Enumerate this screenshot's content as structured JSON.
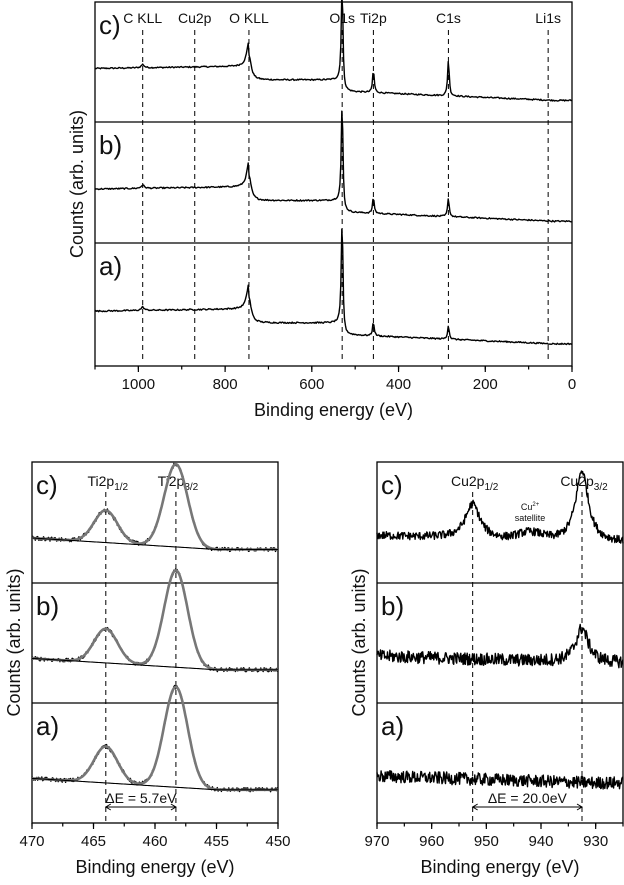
{
  "chart_data": [
    {
      "type": "line",
      "id": "survey",
      "xlabel": "Binding energy (eV)",
      "ylabel": "Counts (arb. units)",
      "xlim": [
        1100,
        0
      ],
      "xreversed": true,
      "xticks": [
        1000,
        800,
        600,
        400,
        200,
        0
      ],
      "panels": [
        "c)",
        "b)",
        "a)"
      ],
      "peak_lines": [
        {
          "label": "C KLL",
          "x": 990
        },
        {
          "label": "Cu2p",
          "x": 870
        },
        {
          "label": "O KLL",
          "x": 745
        },
        {
          "label": "O1s",
          "x": 530
        },
        {
          "label": "Ti2p",
          "x": 458
        },
        {
          "label": "C1s",
          "x": 285
        },
        {
          "label": "Li1s",
          "x": 55
        }
      ],
      "series": [
        {
          "panel": "c)",
          "peaks": [
            {
              "x": 530,
              "height": 0.9
            },
            {
              "x": 458,
              "height": 0.2
            },
            {
              "x": 285,
              "height": 0.32
            },
            {
              "x": 745,
              "height": 0.22
            }
          ]
        },
        {
          "panel": "b)",
          "peaks": [
            {
              "x": 530,
              "height": 0.92
            },
            {
              "x": 458,
              "height": 0.14
            },
            {
              "x": 285,
              "height": 0.16
            },
            {
              "x": 745,
              "height": 0.22
            }
          ]
        },
        {
          "panel": "a)",
          "peaks": [
            {
              "x": 530,
              "height": 0.95
            },
            {
              "x": 458,
              "height": 0.12
            },
            {
              "x": 285,
              "height": 0.12
            },
            {
              "x": 745,
              "height": 0.22
            }
          ]
        }
      ]
    },
    {
      "type": "line",
      "id": "ti2p",
      "xlabel": "Binding energy (eV)",
      "ylabel": "Counts (arb. units)",
      "xlim": [
        470,
        450
      ],
      "xreversed": true,
      "xticks": [
        470,
        465,
        460,
        455,
        450
      ],
      "panels": [
        "c)",
        "b)",
        "a)"
      ],
      "peak_lines": [
        {
          "label": "Ti2p",
          "sub": "1/2",
          "x": 464.0
        },
        {
          "label": "Ti2p",
          "sub": "3/2",
          "x": 458.3
        }
      ],
      "annotation": "ΔE = 5.7eV",
      "series": [
        {
          "panel": "c)",
          "peaks": [
            {
              "x": 464.0,
              "height": 0.28
            },
            {
              "x": 458.3,
              "height": 0.72
            }
          ]
        },
        {
          "panel": "b)",
          "peaks": [
            {
              "x": 464.0,
              "height": 0.3
            },
            {
              "x": 458.3,
              "height": 0.85
            }
          ]
        },
        {
          "panel": "a)",
          "peaks": [
            {
              "x": 464.0,
              "height": 0.32
            },
            {
              "x": 458.3,
              "height": 0.88
            }
          ]
        }
      ]
    },
    {
      "type": "line",
      "id": "cu2p",
      "xlabel": "Binding energy (eV)",
      "ylabel": "Counts (arb. units)",
      "xlim": [
        970,
        925
      ],
      "xreversed": true,
      "xticks": [
        970,
        960,
        950,
        940,
        930
      ],
      "panels": [
        "c)",
        "b)",
        "a)"
      ],
      "peak_lines": [
        {
          "label": "Cu2p",
          "sub": "1/2",
          "x": 952.5
        },
        {
          "label": "Cu2p",
          "sub": "3/2",
          "x": 932.5
        }
      ],
      "satellite_label": [
        "Cu",
        "2+",
        "satellite"
      ],
      "annotation": "ΔE = 20.0eV",
      "series": [
        {
          "panel": "c)",
          "peaks": [
            {
              "x": 952.5,
              "height": 0.3
            },
            {
              "x": 932.5,
              "height": 0.62
            }
          ]
        },
        {
          "panel": "b)",
          "peaks": [
            {
              "x": 932.5,
              "height": 0.3
            }
          ]
        },
        {
          "panel": "a)",
          "peaks": []
        }
      ]
    }
  ]
}
